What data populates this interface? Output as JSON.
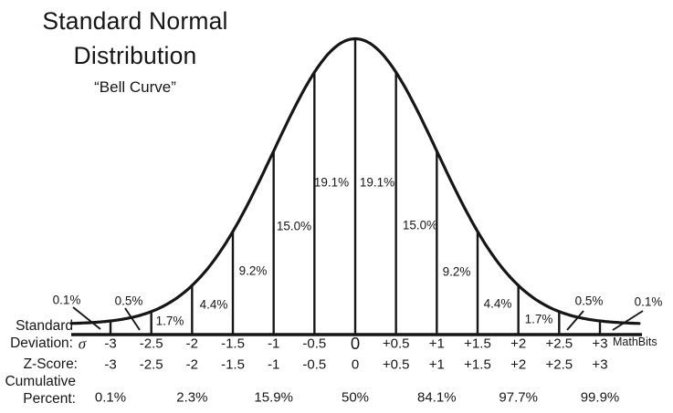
{
  "title": {
    "line1": "Standard Normal",
    "line2": "Distribution",
    "subtitle": "“Bell Curve”"
  },
  "watermark": "MathBits",
  "colors": {
    "ink": "#161616",
    "background": "#ffffff"
  },
  "axis_labels": {
    "sd_line1": "Standard",
    "sd_line2": "Deviation:",
    "sd_symbol": "σ",
    "z_label": "Z-Score:",
    "cum_line1": "Cumulative",
    "cum_line2": "Percent:"
  },
  "chart_data": {
    "type": "area",
    "title": "Standard Normal Distribution",
    "subtitle": "Bell Curve",
    "distribution": "standard normal (mean 0, standard deviation 1)",
    "grid": false,
    "x_axis": {
      "label": "Standard Deviation (σ)",
      "range_sigma": [
        -3.5,
        3.5
      ],
      "ticks": [
        "-3",
        "-2.5",
        "-2",
        "-1.5",
        "-1",
        "-0.5",
        "0",
        "+0.5",
        "+1",
        "+1.5",
        "+2",
        "+2.5",
        "+3"
      ]
    },
    "z_scores": [
      "-3",
      "-2.5",
      "-2",
      "-1.5",
      "-1",
      "-0.5",
      "0",
      "+0.5",
      "+1",
      "+1.5",
      "+2",
      "+2.5",
      "+3"
    ],
    "segment_percentages": [
      {
        "range": "below -3",
        "value": "0.1%"
      },
      {
        "range": "-3 to -2.5",
        "value": "0.5%"
      },
      {
        "range": "-2.5 to -2",
        "value": "1.7%"
      },
      {
        "range": "-2 to -1.5",
        "value": "4.4%"
      },
      {
        "range": "-1.5 to -1",
        "value": "9.2%"
      },
      {
        "range": "-1 to -0.5",
        "value": "15.0%"
      },
      {
        "range": "-0.5 to 0",
        "value": "19.1%"
      },
      {
        "range": "0 to +0.5",
        "value": "19.1%"
      },
      {
        "range": "+0.5 to +1",
        "value": "15.0%"
      },
      {
        "range": "+1 to +1.5",
        "value": "9.2%"
      },
      {
        "range": "+1.5 to +2",
        "value": "4.4%"
      },
      {
        "range": "+2 to +2.5",
        "value": "1.7%"
      },
      {
        "range": "+2.5 to +3",
        "value": "0.5%"
      },
      {
        "range": "above +3",
        "value": "0.1%"
      }
    ],
    "cumulative_percent": [
      {
        "z": "-3",
        "value": "0.1%"
      },
      {
        "z": "-2",
        "value": "2.3%"
      },
      {
        "z": "-1",
        "value": "15.9%"
      },
      {
        "z": "0",
        "value": "50%"
      },
      {
        "z": "+1",
        "value": "84.1%"
      },
      {
        "z": "+2",
        "value": "97.7%"
      },
      {
        "z": "+3",
        "value": "99.9%"
      }
    ]
  }
}
